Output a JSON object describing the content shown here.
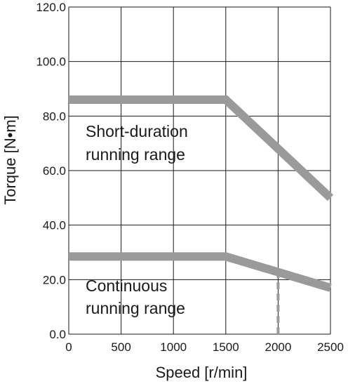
{
  "chart_data": {
    "type": "line",
    "xlabel": "Speed [r/min]",
    "ylabel": "Torque [N•m]",
    "xlim": [
      0,
      2500
    ],
    "ylim": [
      0,
      120
    ],
    "x_ticks": [
      "0",
      "500",
      "1000",
      "1500",
      "2000",
      "2500"
    ],
    "y_ticks": [
      "0.0",
      "20.0",
      "40.0",
      "60.0",
      "80.0",
      "100.0",
      "120.0"
    ],
    "grid": true,
    "series": [
      {
        "x": [
          0,
          1500,
          2500
        ],
        "y": [
          86,
          86,
          50
        ],
        "color": "#9a9a9a",
        "style": "solid"
      },
      {
        "x": [
          0,
          1500,
          2500
        ],
        "y": [
          28.5,
          28.5,
          17
        ],
        "color": "#9a9a9a",
        "style": "solid"
      },
      {
        "x": [
          2000,
          2000
        ],
        "y": [
          0,
          21.7
        ],
        "color": "#9a9a9a",
        "style": "dashed"
      }
    ],
    "annotations": [
      {
        "lines": [
          "Short-duration",
          "running range"
        ]
      },
      {
        "lines": [
          "Continuous",
          "running range"
        ]
      }
    ]
  }
}
